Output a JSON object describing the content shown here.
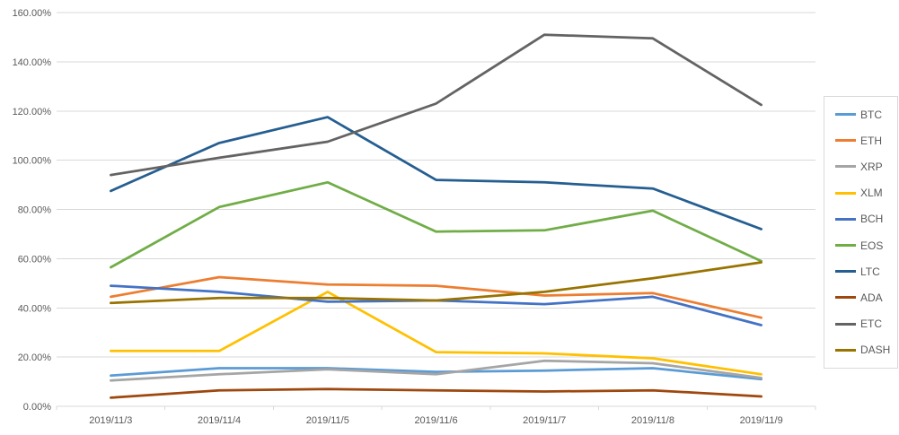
{
  "chart_data": {
    "type": "line",
    "title": "",
    "xlabel": "",
    "ylabel": "",
    "categories": [
      "2019/11/3",
      "2019/11/4",
      "2019/11/5",
      "2019/11/6",
      "2019/11/7",
      "2019/11/8",
      "2019/11/9"
    ],
    "y_axis": {
      "min": 0,
      "max": 160,
      "step": 20,
      "tick_labels": [
        "0.00%",
        "20.00%",
        "40.00%",
        "60.00%",
        "80.00%",
        "100.00%",
        "120.00%",
        "140.00%",
        "160.00%"
      ]
    },
    "grid": true,
    "legend_position": "right",
    "series": [
      {
        "name": "BTC",
        "color": "#5B9BD5",
        "values": [
          12.5,
          15.5,
          15.5,
          14,
          14.5,
          15.5,
          11
        ]
      },
      {
        "name": "ETH",
        "color": "#ED7D31",
        "values": [
          44.5,
          52.5,
          49.5,
          49,
          45,
          46,
          36
        ]
      },
      {
        "name": "XRP",
        "color": "#A5A5A5",
        "values": [
          10.5,
          13,
          15,
          13,
          18.5,
          17.5,
          11.5
        ]
      },
      {
        "name": "XLM",
        "color": "#FFC000",
        "values": [
          22.5,
          22.5,
          46.5,
          22,
          21.5,
          19.5,
          13
        ]
      },
      {
        "name": "BCH",
        "color": "#4472C4",
        "values": [
          49,
          46.5,
          42.5,
          43,
          41.5,
          44.5,
          33
        ]
      },
      {
        "name": "EOS",
        "color": "#70AD47",
        "values": [
          56.5,
          81,
          91,
          71,
          71.5,
          79.5,
          59
        ]
      },
      {
        "name": "LTC",
        "color": "#255E91",
        "values": [
          87.5,
          107,
          117.5,
          92,
          91,
          88.5,
          72
        ]
      },
      {
        "name": "ADA",
        "color": "#9E480E",
        "values": [
          3.5,
          6.5,
          7,
          6.5,
          6,
          6.5,
          4
        ]
      },
      {
        "name": "ETC",
        "color": "#636363",
        "values": [
          94,
          101,
          107.5,
          123,
          151,
          149.5,
          122.5
        ]
      },
      {
        "name": "DASH",
        "color": "#997300",
        "values": [
          42,
          44,
          44,
          43,
          46.5,
          52,
          58.5
        ]
      }
    ]
  },
  "colors": {
    "gridline": "#D9D9D9",
    "axis_text": "#595959",
    "background": "#FFFFFF"
  }
}
